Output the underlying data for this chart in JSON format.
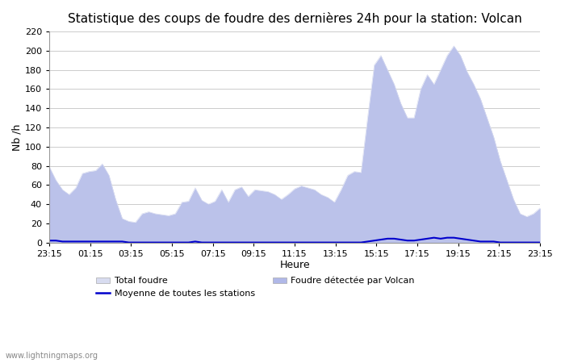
{
  "title": "Statistique des coups de foudre des dernières 24h pour la station: Volcan",
  "xlabel": "Heure",
  "ylabel": "Nb /h",
  "ylim": [
    0,
    220
  ],
  "yticks": [
    0,
    20,
    40,
    60,
    80,
    100,
    120,
    140,
    160,
    180,
    200,
    220
  ],
  "x_labels": [
    "23:15",
    "01:15",
    "03:15",
    "05:15",
    "07:15",
    "09:15",
    "11:15",
    "13:15",
    "15:15",
    "17:15",
    "19:15",
    "21:15",
    "23:15"
  ],
  "watermark": "www.lightningmaps.org",
  "total_foudre_color": "#d8dcf0",
  "volcan_color": "#b0b8e8",
  "moyenne_color": "#0000cc",
  "background_color": "#ffffff",
  "grid_color": "#cccccc",
  "title_fontsize": 11,
  "total_foudre": [
    79,
    65,
    55,
    50,
    57,
    72,
    74,
    75,
    82,
    70,
    45,
    25,
    22,
    21,
    30,
    32,
    30,
    29,
    28,
    30,
    42,
    43,
    57,
    44,
    40,
    43,
    55,
    42,
    55,
    58,
    48,
    55,
    54,
    53,
    50,
    45,
    50,
    56,
    59,
    57,
    55,
    50,
    47,
    42,
    55,
    70,
    74,
    73,
    130,
    185,
    195,
    180,
    165,
    145,
    130,
    130,
    160,
    175,
    165,
    180,
    195,
    205,
    195,
    178,
    165,
    150,
    130,
    110,
    85,
    65,
    45,
    30,
    27,
    30,
    36
  ],
  "volcan": [
    79,
    65,
    55,
    50,
    57,
    72,
    74,
    75,
    82,
    70,
    45,
    25,
    22,
    21,
    30,
    32,
    30,
    29,
    28,
    30,
    42,
    43,
    57,
    44,
    40,
    43,
    55,
    42,
    55,
    58,
    48,
    55,
    54,
    53,
    50,
    45,
    50,
    56,
    59,
    57,
    55,
    50,
    47,
    42,
    55,
    70,
    74,
    73,
    130,
    185,
    195,
    180,
    165,
    145,
    130,
    130,
    160,
    175,
    165,
    180,
    195,
    205,
    195,
    178,
    165,
    150,
    130,
    110,
    85,
    65,
    45,
    30,
    27,
    30,
    36
  ],
  "moyenne": [
    2,
    2,
    1,
    1,
    1,
    1,
    1,
    1,
    1,
    1,
    1,
    1,
    0,
    0,
    0,
    0,
    0,
    0,
    0,
    0,
    0,
    0,
    1,
    0,
    0,
    0,
    0,
    0,
    0,
    0,
    0,
    0,
    0,
    0,
    0,
    0,
    0,
    0,
    0,
    0,
    0,
    0,
    0,
    0,
    0,
    0,
    0,
    0,
    1,
    2,
    3,
    4,
    4,
    3,
    2,
    2,
    3,
    4,
    5,
    4,
    5,
    5,
    4,
    3,
    2,
    1,
    1,
    1,
    0,
    0,
    0,
    0,
    0,
    0,
    0
  ]
}
